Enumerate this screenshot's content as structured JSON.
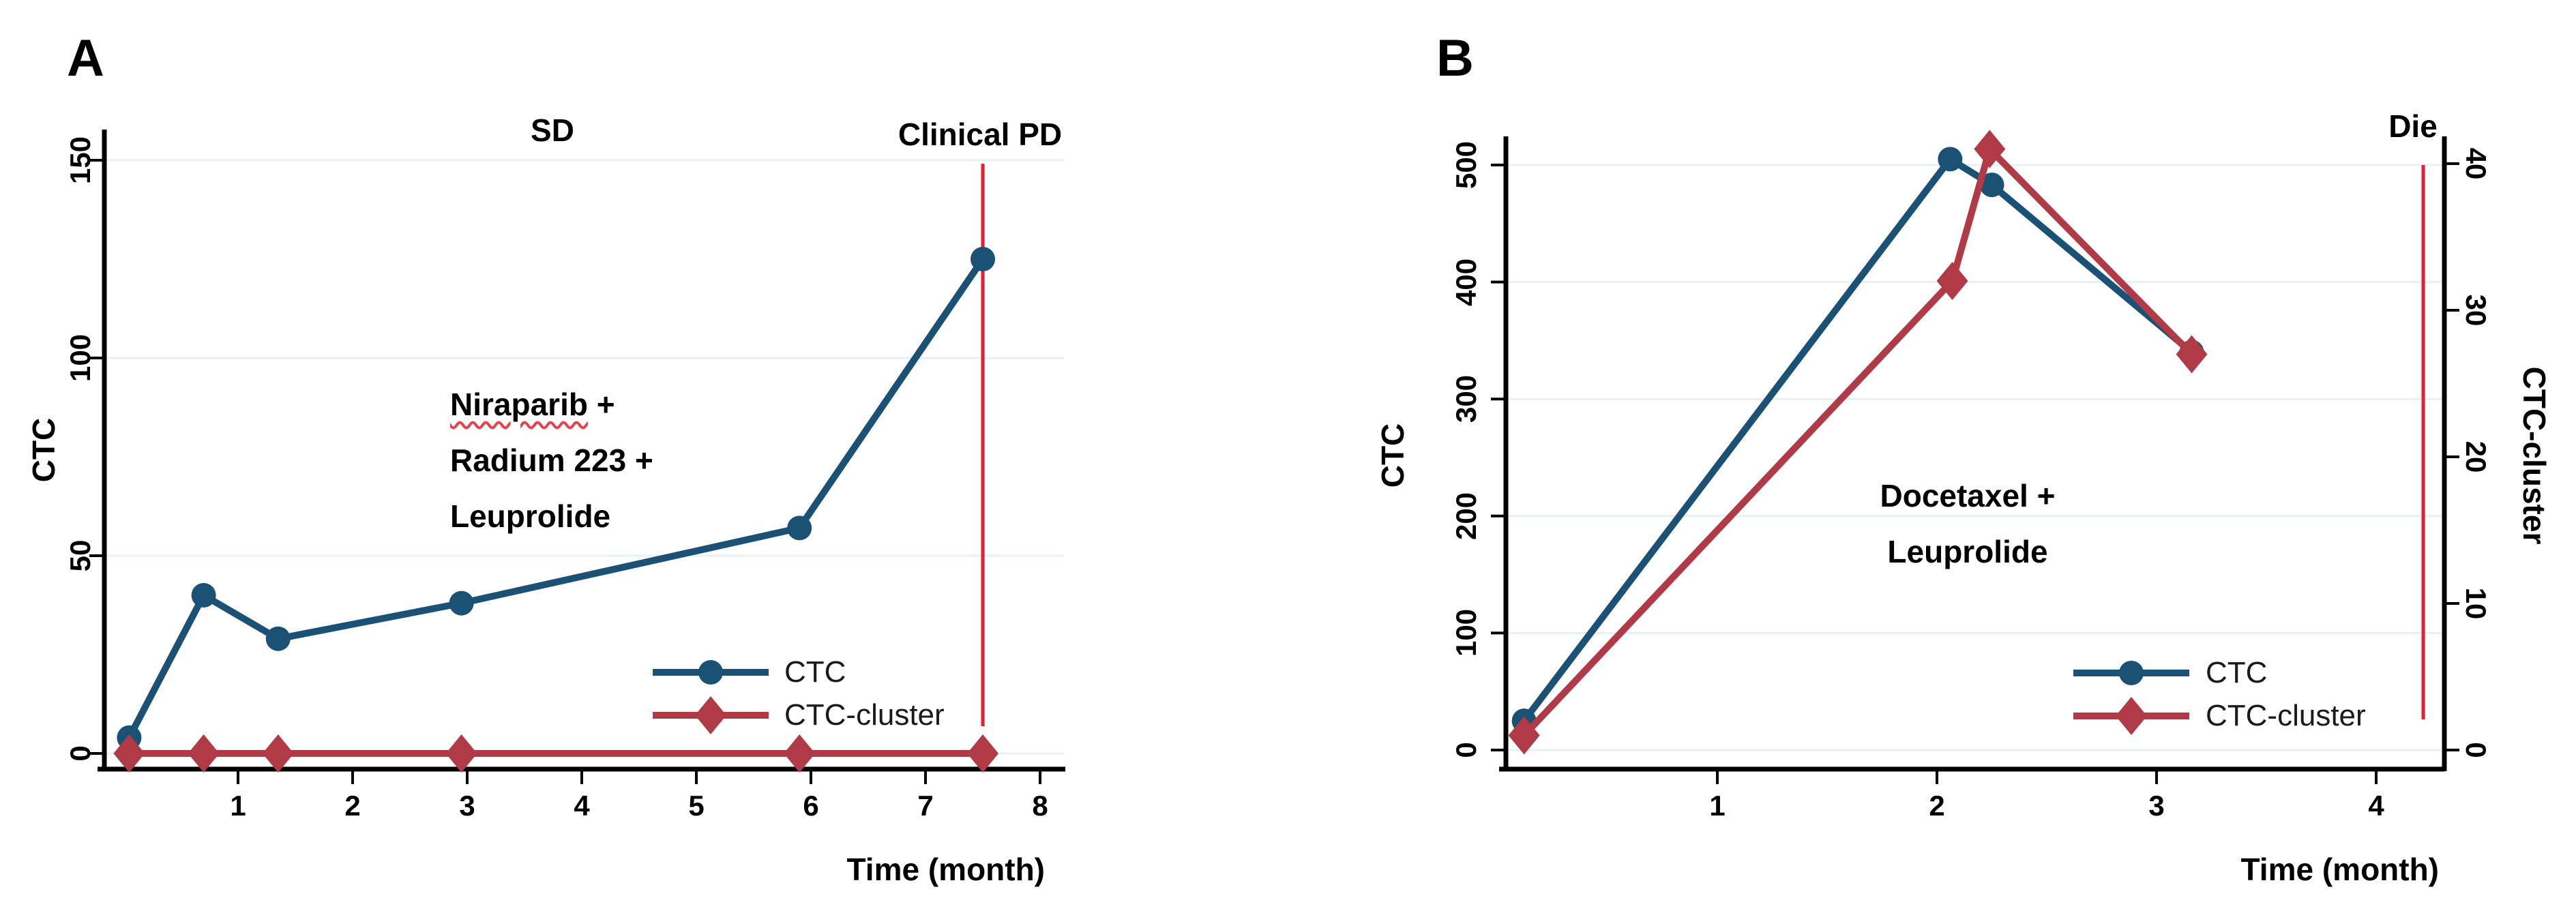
{
  "colors": {
    "ctc_blue": "#1a5174",
    "cluster_red": "#b03a45",
    "event_line_red": "#ed1c35",
    "gridline": "#e7f1f4",
    "axis_black": "#000000"
  },
  "chart_data": [
    {
      "panel_label": "A",
      "type": "line",
      "xlabel": "Time (month)",
      "ylabel": "CTC",
      "xticks": [
        1,
        2,
        3,
        4,
        5,
        6,
        7,
        8
      ],
      "yticks": [
        0,
        50,
        100,
        150
      ],
      "xlim": [
        -0.17,
        8.4
      ],
      "ylim": [
        0,
        157
      ],
      "grid": true,
      "legend_position": "inside lower right",
      "annotations": {
        "phase": "SD",
        "event": "Clinical PD",
        "event_line_month": 7.5,
        "treatment_word": "Niraparib",
        "treatment_word_suffix": " +",
        "treatment_line2": "Radium 223 +",
        "treatment_line3": "Leuprolide"
      },
      "series": [
        {
          "name": "CTC",
          "marker": "circle",
          "color": "#1a5174",
          "axis": "left",
          "x": [
            0.05,
            0.7,
            1.35,
            2.95,
            5.9,
            7.5
          ],
          "y": [
            4,
            40,
            29,
            38,
            57,
            125
          ]
        },
        {
          "name": "CTC-cluster",
          "marker": "diamond",
          "color": "#b03a45",
          "axis": "left",
          "x": [
            0.05,
            0.7,
            1.35,
            2.95,
            5.9,
            7.5
          ],
          "y": [
            0,
            0,
            0,
            0,
            0,
            0
          ]
        }
      ]
    },
    {
      "panel_label": "B",
      "type": "line",
      "xlabel": "Time (month)",
      "ylabel": "CTC",
      "y2label": "CTC-cluster",
      "xticks": [
        1,
        2,
        3,
        4
      ],
      "yticks": [
        0,
        100,
        200,
        300,
        400,
        500
      ],
      "y2ticks": [
        0,
        10,
        20,
        30,
        40
      ],
      "xlim": [
        -0.04,
        4.31
      ],
      "ylim": [
        0,
        525
      ],
      "y2lim": [
        0,
        42
      ],
      "grid": true,
      "legend_position": "inside lower right",
      "annotations": {
        "event": "Die",
        "event_line_month": 4.21,
        "treatment_line1": "Docetaxel +",
        "treatment_line2": "Leuprolide"
      },
      "series": [
        {
          "name": "CTC",
          "marker": "circle",
          "color": "#1a5174",
          "axis": "left",
          "x": [
            0.12,
            2.06,
            2.25,
            3.16
          ],
          "y": [
            25,
            505,
            483,
            340
          ]
        },
        {
          "name": "CTC-cluster",
          "marker": "diamond",
          "color": "#b03a45",
          "axis": "right",
          "x": [
            0.12,
            2.07,
            2.24,
            3.16
          ],
          "y": [
            1,
            32,
            41,
            27
          ]
        }
      ]
    }
  ]
}
